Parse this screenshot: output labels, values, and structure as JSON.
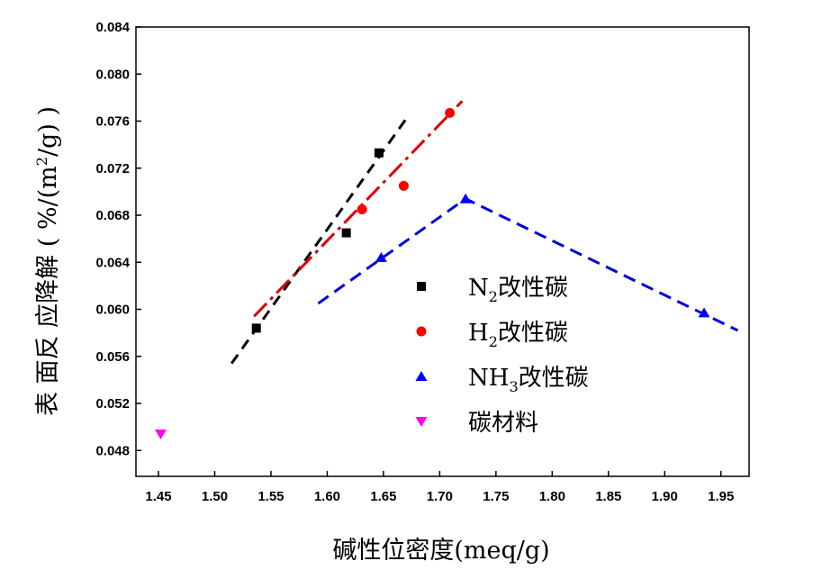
{
  "chart_data": {
    "type": "scatter",
    "xlabel": "碱性位密度(meq/g)",
    "ylabel": "表面反应降解(%/(m²/g))",
    "ylabel_parts": {
      "before_superscript": "表 面反 应降解 ( %/(m",
      "superscript": "2",
      "after_superscript": "/g) )"
    },
    "xlim": [
      1.43,
      1.975
    ],
    "ylim": [
      0.0458,
      0.084
    ],
    "xticks": [
      "1.45",
      "1.50",
      "1.55",
      "1.60",
      "1.65",
      "1.70",
      "1.75",
      "1.80",
      "1.85",
      "1.90",
      "1.95"
    ],
    "yticks": [
      "0.048",
      "0.052",
      "0.056",
      "0.060",
      "0.064",
      "0.068",
      "0.072",
      "0.076",
      "0.080",
      "0.084"
    ],
    "series": [
      {
        "name": "N2改性碳",
        "label_main": "N",
        "label_sub": "2",
        "label_rest": "改性碳",
        "marker": "square",
        "color": "#000000",
        "points": [
          [
            1.537,
            0.0584
          ],
          [
            1.617,
            0.0665
          ],
          [
            1.646,
            0.0733
          ]
        ],
        "fit": {
          "from": [
            1.515,
            0.0554
          ],
          "to": [
            1.671,
            0.0763
          ],
          "dash": "12,8",
          "color": "#000000"
        }
      },
      {
        "name": "H2改性碳",
        "label_main": "H",
        "label_sub": "2",
        "label_rest": "改性碳",
        "marker": "circle",
        "color": "#ff0000",
        "points": [
          [
            1.631,
            0.0685
          ],
          [
            1.668,
            0.0705
          ],
          [
            1.709,
            0.0767
          ]
        ],
        "fit": {
          "from": [
            1.535,
            0.0594
          ],
          "to": [
            1.72,
            0.0777
          ],
          "dash": "20,6,4,6",
          "color": "#dd0000"
        }
      },
      {
        "name": "NH3改性碳",
        "label_main": "NH",
        "label_sub": "3",
        "label_rest": "改性碳",
        "marker": "triangle-up",
        "color": "#0000ff",
        "points": [
          [
            1.648,
            0.0644
          ],
          [
            1.723,
            0.0694
          ],
          [
            1.935,
            0.0597
          ]
        ],
        "fit_polyline": [
          [
            1.592,
            0.0605
          ],
          [
            1.723,
            0.0694
          ],
          [
            1.965,
            0.0582
          ]
        ],
        "fit_dash": "14,8",
        "fit_color": "#0000dd"
      },
      {
        "name": "碳材料",
        "label_main": "碳材料",
        "label_sub": "",
        "label_rest": "",
        "marker": "triangle-down",
        "color": "#ff00ff",
        "points": [
          [
            1.452,
            0.0494
          ]
        ]
      }
    ],
    "legend_position": "center-right"
  }
}
